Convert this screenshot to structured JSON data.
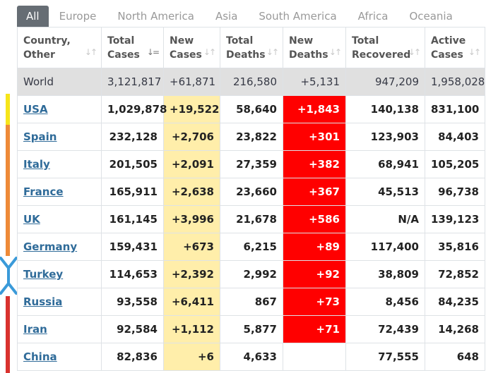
{
  "tabs": [
    "All",
    "Europe",
    "North America",
    "Asia",
    "South America",
    "Africa",
    "Oceania"
  ],
  "columns": [
    {
      "line1": "Country,",
      "line2": "Other"
    },
    {
      "line1": "Total",
      "line2": "Cases"
    },
    {
      "line1": "New",
      "line2": "Cases"
    },
    {
      "line1": "Total",
      "line2": "Deaths"
    },
    {
      "line1": "New",
      "line2": "Deaths"
    },
    {
      "line1": "Total",
      "line2": "Recovered"
    },
    {
      "line1": "Active",
      "line2": "Cases"
    }
  ],
  "world": [
    "World",
    "3,121,817",
    "+61,871",
    "216,580",
    "+5,131",
    "947,209",
    "1,958,028"
  ],
  "rows": [
    [
      "USA",
      "1,029,878",
      "+19,522",
      "58,640",
      "+1,843",
      "140,138",
      "831,100"
    ],
    [
      "Spain",
      "232,128",
      "+2,706",
      "23,822",
      "+301",
      "123,903",
      "84,403"
    ],
    [
      "Italy",
      "201,505",
      "+2,091",
      "27,359",
      "+382",
      "68,941",
      "105,205"
    ],
    [
      "France",
      "165,911",
      "+2,638",
      "23,660",
      "+367",
      "45,513",
      "96,738"
    ],
    [
      "UK",
      "161,145",
      "+3,996",
      "21,678",
      "+586",
      "N/A",
      "139,123"
    ],
    [
      "Germany",
      "159,431",
      "+673",
      "6,215",
      "+89",
      "117,400",
      "35,816"
    ],
    [
      "Turkey",
      "114,653",
      "+2,392",
      "2,992",
      "+92",
      "38,809",
      "72,852"
    ],
    [
      "Russia",
      "93,558",
      "+6,411",
      "867",
      "+73",
      "8,456",
      "84,235"
    ],
    [
      "Iran",
      "92,584",
      "+1,112",
      "5,877",
      "+71",
      "72,439",
      "14,268"
    ],
    [
      "China",
      "82,836",
      "+6",
      "4,633",
      "",
      "77,555",
      "648"
    ]
  ],
  "colors": {
    "tab_active": "#666d74",
    "new_cases_bg": "#ffeeaa",
    "new_deaths_bg": "#ff0000",
    "world_row_bg": "#e0e0e0",
    "country_link": "#2f6b99"
  }
}
